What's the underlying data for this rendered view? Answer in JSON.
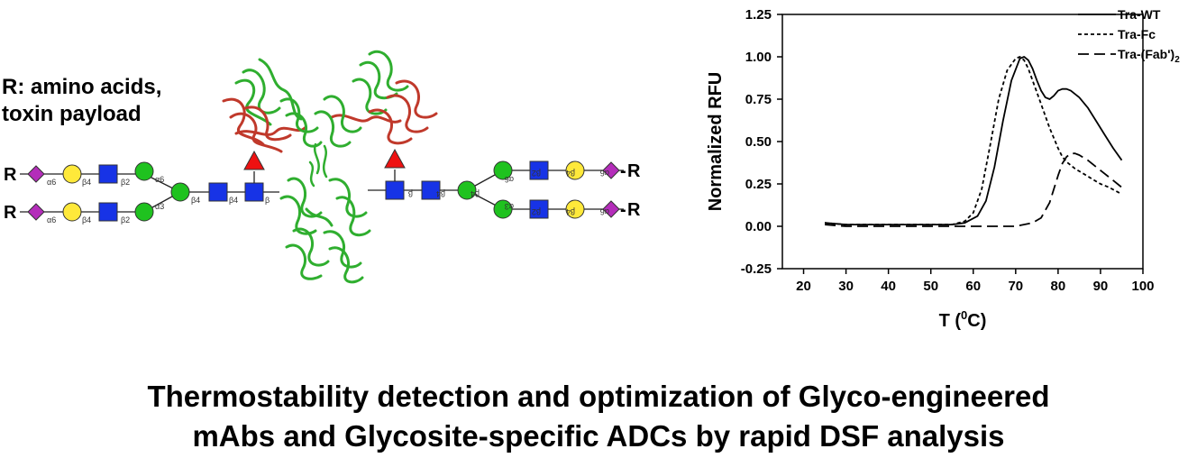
{
  "r_note": [
    "R: amino acids,",
    "toxin payload"
  ],
  "glycan": {
    "r_symbol": "R",
    "left_links_top": [
      "α6",
      "β4",
      "β2"
    ],
    "left_links_bottom": [
      "α6",
      "β4",
      "β2"
    ],
    "left_branch_links": [
      "α6",
      "α3"
    ],
    "left_core_links": [
      "β4",
      "β4",
      "β"
    ],
    "right_core_links": [
      "β",
      "β4",
      "β4"
    ],
    "right_branch_links": [
      "α6",
      "α3"
    ],
    "right_links_top": [
      "β2",
      "β4",
      "α6"
    ],
    "right_links_bottom": [
      "β2",
      "β4",
      "α6"
    ],
    "colors": {
      "sialic": "#b42dba",
      "galactose": "#ffe93a",
      "glcnac": "#1733e6",
      "mannose": "#1fc21f",
      "fucose": "#ee1111"
    }
  },
  "antibody": {
    "fab_color": "#c0392b",
    "fc_color": "#2fae2f"
  },
  "chart_data": {
    "type": "line",
    "xlabel_prefix": "T (",
    "xlabel_sup": "0",
    "xlabel_suffix": "C)",
    "ylabel": "Normalized RFU",
    "xlim": [
      15,
      100
    ],
    "ylim": [
      -0.25,
      1.25
    ],
    "xticks": [
      20,
      30,
      40,
      50,
      60,
      70,
      80,
      90,
      100
    ],
    "yticks": [
      -0.25,
      0.0,
      0.25,
      0.5,
      0.75,
      1.0,
      1.25
    ],
    "ytick_labels": [
      "-0.25",
      "0.00",
      "0.25",
      "0.50",
      "0.75",
      "1.00",
      "1.25"
    ],
    "grid": false,
    "legend_position": "top-right",
    "series": [
      {
        "name": "Tra-WT",
        "name_sub": "",
        "name_suffix": "",
        "dash": "solid",
        "x": [
          25,
          30,
          35,
          40,
          45,
          50,
          55,
          58,
          61,
          63,
          65,
          67,
          69,
          71,
          72,
          73,
          74,
          75,
          76,
          77,
          78,
          79,
          80,
          81,
          82,
          83,
          85,
          87,
          89,
          91,
          93,
          95
        ],
        "y": [
          0.02,
          0.01,
          0.01,
          0.01,
          0.01,
          0.01,
          0.01,
          0.02,
          0.06,
          0.15,
          0.35,
          0.62,
          0.86,
          0.99,
          1.0,
          0.98,
          0.93,
          0.86,
          0.8,
          0.76,
          0.75,
          0.77,
          0.8,
          0.81,
          0.81,
          0.8,
          0.76,
          0.7,
          0.62,
          0.54,
          0.46,
          0.39
        ]
      },
      {
        "name": "Tra-Fc",
        "name_sub": "",
        "name_suffix": "",
        "dash": "dotted",
        "x": [
          25,
          30,
          35,
          40,
          45,
          50,
          55,
          58,
          60,
          62,
          64,
          66,
          68,
          70,
          71,
          72,
          73,
          74,
          75,
          76,
          77,
          78,
          79,
          80,
          81,
          82,
          84,
          86,
          88,
          90,
          92,
          95
        ],
        "y": [
          0.02,
          0.01,
          0.01,
          0.01,
          0.01,
          0.01,
          0.01,
          0.03,
          0.08,
          0.22,
          0.48,
          0.75,
          0.92,
          0.99,
          1.0,
          0.98,
          0.93,
          0.86,
          0.79,
          0.72,
          0.65,
          0.58,
          0.52,
          0.46,
          0.41,
          0.38,
          0.34,
          0.31,
          0.28,
          0.25,
          0.23,
          0.19
        ]
      },
      {
        "name": "Tra-(Fab')",
        "name_sub": "2",
        "name_suffix": "",
        "dash": "dashed",
        "x": [
          25,
          30,
          40,
          50,
          60,
          66,
          70,
          74,
          76,
          78,
          80,
          81,
          82,
          83,
          84,
          85,
          87,
          89,
          91,
          93,
          95
        ],
        "y": [
          0.01,
          0.0,
          0.0,
          0.0,
          0.0,
          0.0,
          0.0,
          0.02,
          0.05,
          0.14,
          0.3,
          0.37,
          0.41,
          0.43,
          0.43,
          0.42,
          0.39,
          0.35,
          0.31,
          0.27,
          0.23
        ]
      }
    ]
  },
  "caption": [
    "Thermostability detection and optimization of Glyco-engineered",
    "mAbs and Glycosite-specific ADCs by rapid DSF analysis"
  ]
}
